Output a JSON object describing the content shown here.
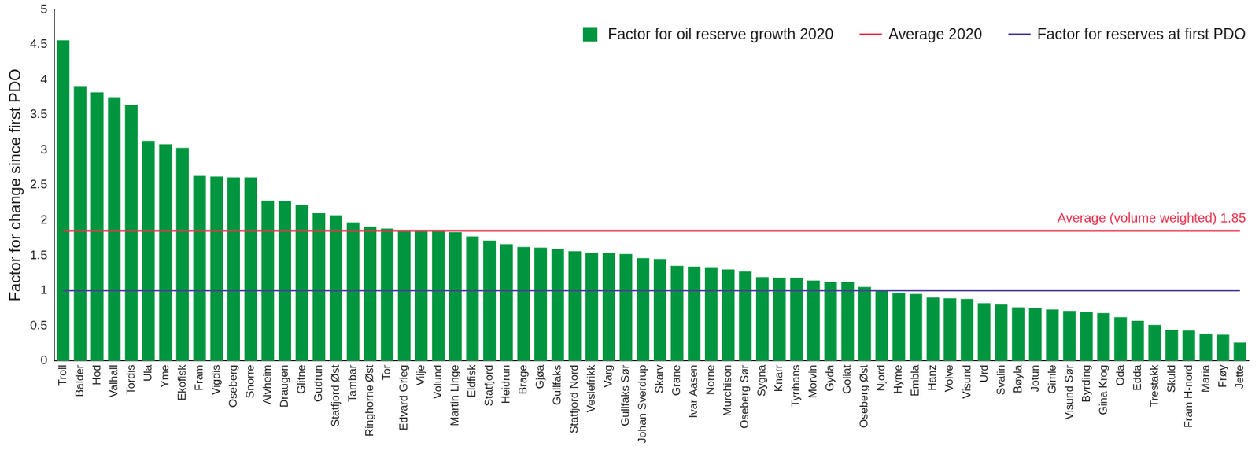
{
  "chart_data": {
    "type": "bar",
    "y_label": "Factor for change since first PDO",
    "categories": [
      "Troll",
      "Balder",
      "Hod",
      "Valhall",
      "Tordis",
      "Ula",
      "Yme",
      "Ekofisk",
      "Fram",
      "Vigdis",
      "Oseberg",
      "Snorre",
      "Alvheim",
      "Draugen",
      "Glitne",
      "Gudrun",
      "Statfjord Øst",
      "Tambar",
      "Ringhorne Øst",
      "Tor",
      "Edvard Grieg",
      "Vilje",
      "Volund",
      "Martin Linge",
      "Eldfisk",
      "Statfjord",
      "Heidrun",
      "Brage",
      "Gjøa",
      "Gullfaks",
      "Statfjord Nord",
      "Veslefrikk",
      "Varg",
      "Gullfaks Sør",
      "Johan Sverdrup",
      "Skarv",
      "Grane",
      "Ivar Aasen",
      "Norne",
      "Murchison",
      "Oseberg Sør",
      "Sygna",
      "Knarr",
      "Tyrihans",
      "Morvin",
      "Gyda",
      "Goliat",
      "Oseberg Øst",
      "Njord",
      "Hyme",
      "Embla",
      "Hanz",
      "Volve",
      "Visund",
      "Urd",
      "Svalin",
      "Bøyla",
      "Jotun",
      "Gimle",
      "Visund Sør",
      "Byrding",
      "Gina Krog",
      "Oda",
      "Edda",
      "Trestakk",
      "Skuld",
      "Fram H-nord",
      "Maria",
      "Frøy",
      "Jette"
    ],
    "series": [
      {
        "name": "Factor for oil reserve growth 2020",
        "type": "bar",
        "color": "#00963f",
        "values": [
          4.56,
          3.91,
          3.82,
          3.75,
          3.64,
          3.13,
          3.08,
          3.03,
          2.63,
          2.62,
          2.61,
          2.61,
          2.28,
          2.27,
          2.22,
          2.1,
          2.07,
          1.97,
          1.91,
          1.88,
          1.85,
          1.84,
          1.84,
          1.83,
          1.77,
          1.71,
          1.66,
          1.62,
          1.61,
          1.59,
          1.56,
          1.54,
          1.53,
          1.52,
          1.46,
          1.45,
          1.35,
          1.34,
          1.32,
          1.3,
          1.27,
          1.19,
          1.18,
          1.18,
          1.14,
          1.12,
          1.12,
          1.05,
          1.0,
          0.97,
          0.95,
          0.9,
          0.89,
          0.88,
          0.82,
          0.8,
          0.76,
          0.75,
          0.73,
          0.71,
          0.7,
          0.68,
          0.62,
          0.57,
          0.51,
          0.44,
          0.43,
          0.38,
          0.37,
          0.26
        ]
      },
      {
        "name": "Average 2020",
        "type": "line",
        "color": "#e8344e",
        "values": [
          1.85,
          1.85,
          1.85,
          1.85,
          1.85,
          1.85,
          1.85,
          1.85,
          1.85,
          1.85,
          1.85,
          1.85,
          1.85,
          1.85,
          1.85,
          1.85,
          1.85,
          1.85,
          1.85,
          1.85,
          1.85,
          1.85,
          1.85,
          1.85,
          1.85,
          1.85,
          1.85,
          1.85,
          1.85,
          1.85,
          1.85,
          1.85,
          1.85,
          1.85,
          1.85,
          1.85,
          1.85,
          1.85,
          1.85,
          1.85,
          1.85,
          1.85,
          1.85,
          1.85,
          1.85,
          1.85,
          1.85,
          1.85,
          1.85,
          1.85,
          1.85,
          1.85,
          1.85,
          1.85,
          1.85,
          1.85,
          1.85,
          1.85,
          1.85,
          1.85,
          1.85,
          1.85,
          1.85,
          1.85,
          1.85,
          1.85,
          1.85,
          1.85,
          1.85,
          1.85
        ]
      },
      {
        "name": "Factor for reserves at first PDO",
        "type": "line",
        "color": "#4b3b9b",
        "values": [
          1,
          1,
          1,
          1,
          1,
          1,
          1,
          1,
          1,
          1,
          1,
          1,
          1,
          1,
          1,
          1,
          1,
          1,
          1,
          1,
          1,
          1,
          1,
          1,
          1,
          1,
          1,
          1,
          1,
          1,
          1,
          1,
          1,
          1,
          1,
          1,
          1,
          1,
          1,
          1,
          1,
          1,
          1,
          1,
          1,
          1,
          1,
          1,
          1,
          1,
          1,
          1,
          1,
          1,
          1,
          1,
          1,
          1,
          1,
          1,
          1,
          1,
          1,
          1,
          1,
          1,
          1,
          1,
          1,
          1
        ]
      }
    ],
    "annotations": [
      {
        "text": "Average (volume weighted) 1.85",
        "y": 1.85,
        "color": "#e8344e"
      }
    ],
    "ylim": [
      0,
      5
    ],
    "yticks": [
      0,
      0.5,
      1,
      1.5,
      2,
      2.5,
      3,
      3.5,
      4,
      4.5,
      5
    ],
    "legend": "upper right",
    "grid": false
  }
}
